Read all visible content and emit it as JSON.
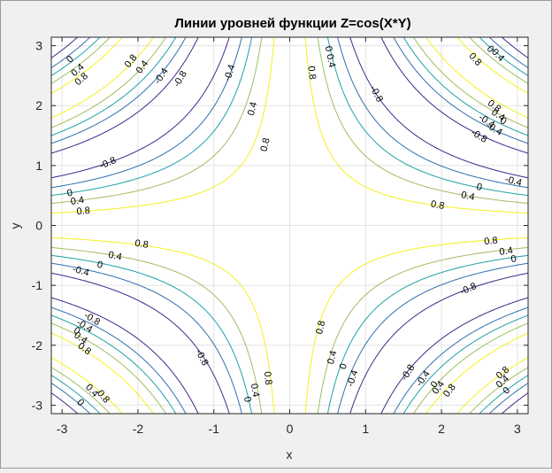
{
  "chart_data": {
    "type": "contour",
    "title": "Линии уровней функции Z=cos(X*Y)",
    "xlabel": "x",
    "ylabel": "y",
    "xlim": [
      -3.1416,
      3.1416
    ],
    "ylim": [
      -3.1416,
      3.1416
    ],
    "x_ticks": [
      -3,
      -2,
      -1,
      0,
      1,
      2,
      3
    ],
    "y_ticks": [
      -3,
      -2,
      -1,
      0,
      1,
      2,
      3
    ],
    "grid": true,
    "function": "cos(x*y)",
    "levels": [
      {
        "value": -0.8,
        "label": "-0.8",
        "color": "#3d2b8c"
      },
      {
        "value": -0.4,
        "label": "-0.4",
        "color": "#2f6fb0"
      },
      {
        "value": 0,
        "label": "0",
        "color": "#1fa1a6"
      },
      {
        "value": 0.4,
        "label": "0.4",
        "color": "#9fbf60"
      },
      {
        "value": 0.8,
        "label": "0.8",
        "color": "#f5f01e"
      }
    ],
    "contour_labels": [
      {
        "text": "0.8",
        "x": -0.33,
        "y": 1.35
      },
      {
        "text": "0.4",
        "x": -0.5,
        "y": 1.95
      },
      {
        "text": "-0.4",
        "x": -0.8,
        "y": 2.55
      },
      {
        "text": "0.8",
        "x": 0.3,
        "y": 2.55
      },
      {
        "text": "0.4",
        "x": 0.55,
        "y": 2.75
      },
      {
        "text": "0",
        "x": 0.52,
        "y": 2.95
      },
      {
        "text": "-0.8",
        "x": 1.15,
        "y": 2.2
      },
      {
        "text": "0.8",
        "x": -2.1,
        "y": 2.75
      },
      {
        "text": "0.4",
        "x": -1.95,
        "y": 2.65
      },
      {
        "text": "-0.4",
        "x": -1.7,
        "y": 2.5
      },
      {
        "text": "-0.8",
        "x": -1.45,
        "y": 2.45
      },
      {
        "text": "0",
        "x": -2.9,
        "y": 2.78
      },
      {
        "text": "0.4",
        "x": -2.8,
        "y": 2.6
      },
      {
        "text": "0.8",
        "x": -2.75,
        "y": 2.45
      },
      {
        "text": "0",
        "x": 2.65,
        "y": 2.95
      },
      {
        "text": "0.4",
        "x": 2.75,
        "y": 2.85
      },
      {
        "text": "0.8",
        "x": 2.45,
        "y": 2.78
      },
      {
        "text": "0.8",
        "x": 2.7,
        "y": 2.0
      },
      {
        "text": "0.4",
        "x": 2.75,
        "y": 1.85
      },
      {
        "text": "-0.4",
        "x": 2.6,
        "y": 1.75
      },
      {
        "text": "0",
        "x": 2.82,
        "y": 1.75
      },
      {
        "text": "-0.4",
        "x": 2.7,
        "y": 1.62
      },
      {
        "text": "-0.8",
        "x": 2.5,
        "y": 1.5
      },
      {
        "text": "-0.8",
        "x": -2.4,
        "y": 1.05
      },
      {
        "text": "0",
        "x": -2.9,
        "y": 0.55
      },
      {
        "text": "0.4",
        "x": -2.8,
        "y": 0.42
      },
      {
        "text": "0.8",
        "x": -2.72,
        "y": 0.25
      },
      {
        "text": "-0.4",
        "x": 2.95,
        "y": 0.75
      },
      {
        "text": "0",
        "x": 2.5,
        "y": 0.65
      },
      {
        "text": "0.4",
        "x": 2.35,
        "y": 0.5
      },
      {
        "text": "0.8",
        "x": 1.95,
        "y": 0.35
      },
      {
        "text": "0.8",
        "x": -1.95,
        "y": -0.3
      },
      {
        "text": "0.4",
        "x": -2.3,
        "y": -0.5
      },
      {
        "text": "0",
        "x": -2.5,
        "y": -0.65
      },
      {
        "text": "-0.4",
        "x": -2.75,
        "y": -0.75
      },
      {
        "text": "0.8",
        "x": 2.65,
        "y": -0.25
      },
      {
        "text": "0.4",
        "x": 2.85,
        "y": -0.42
      },
      {
        "text": "0",
        "x": 2.95,
        "y": -0.55
      },
      {
        "text": "-0.8",
        "x": 2.35,
        "y": -1.05
      },
      {
        "text": "-0.8",
        "x": -2.6,
        "y": -1.55
      },
      {
        "text": "-0.4",
        "x": -2.7,
        "y": -1.67
      },
      {
        "text": "0",
        "x": -2.8,
        "y": -1.75
      },
      {
        "text": "0.4",
        "x": -2.75,
        "y": -1.87
      },
      {
        "text": "0.8",
        "x": -2.7,
        "y": -2.05
      },
      {
        "text": "0.8",
        "x": 0.4,
        "y": -1.7
      },
      {
        "text": "0.4",
        "x": 0.55,
        "y": -2.2
      },
      {
        "text": "0",
        "x": 0.7,
        "y": -2.35
      },
      {
        "text": "-0.4",
        "x": 0.82,
        "y": -2.55
      },
      {
        "text": "-0.8",
        "x": -1.15,
        "y": -2.2
      },
      {
        "text": "0.8",
        "x": -0.28,
        "y": -2.55
      },
      {
        "text": "0.4",
        "x": -0.45,
        "y": -2.75
      },
      {
        "text": "0",
        "x": -0.55,
        "y": -2.9
      },
      {
        "text": "0.4",
        "x": -2.6,
        "y": -2.75
      },
      {
        "text": "0.8",
        "x": -2.45,
        "y": -2.85
      },
      {
        "text": "0",
        "x": -2.75,
        "y": -2.95
      },
      {
        "text": "-0.8",
        "x": 1.55,
        "y": -2.45
      },
      {
        "text": "-0.4",
        "x": 1.75,
        "y": -2.55
      },
      {
        "text": "0",
        "x": 1.9,
        "y": -2.65
      },
      {
        "text": "0.4",
        "x": 1.95,
        "y": -2.7
      },
      {
        "text": "0.8",
        "x": 2.1,
        "y": -2.75
      },
      {
        "text": "0.8",
        "x": 2.8,
        "y": -2.45
      },
      {
        "text": "0.4",
        "x": 2.8,
        "y": -2.6
      },
      {
        "text": "0",
        "x": 2.85,
        "y": -2.75
      }
    ]
  }
}
